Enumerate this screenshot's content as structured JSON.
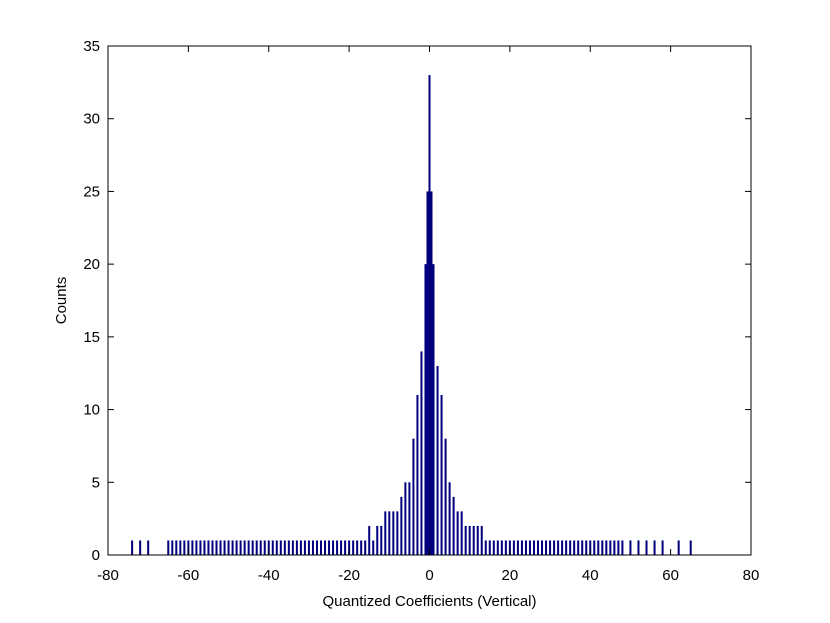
{
  "chart_data": {
    "type": "bar",
    "title": "",
    "xlabel": "Quantized Coefficients (Vertical)",
    "ylabel": "Counts",
    "xlim": [
      -80,
      80
    ],
    "ylim": [
      0,
      35
    ],
    "xticks": [
      -80,
      -60,
      -40,
      -20,
      0,
      20,
      40,
      60,
      80
    ],
    "yticks": [
      0,
      5,
      10,
      15,
      20,
      25,
      30,
      35
    ],
    "grid": false,
    "legend": "none",
    "bar_color": "#00007F",
    "bin_width": 0.5,
    "series": [
      {
        "values": [
          [
            -74,
            1
          ],
          [
            -72,
            1
          ],
          [
            -70,
            1
          ],
          [
            -65,
            1
          ],
          [
            -64,
            1
          ],
          [
            -63,
            1
          ],
          [
            -62,
            1
          ],
          [
            -61,
            1
          ],
          [
            -60,
            1
          ],
          [
            -59,
            1
          ],
          [
            -58,
            1
          ],
          [
            -57,
            1
          ],
          [
            -56,
            1
          ],
          [
            -55,
            1
          ],
          [
            -54,
            1
          ],
          [
            -53,
            1
          ],
          [
            -52,
            1
          ],
          [
            -51,
            1
          ],
          [
            -50,
            1
          ],
          [
            -49,
            1
          ],
          [
            -48,
            1
          ],
          [
            -47,
            1
          ],
          [
            -46,
            1
          ],
          [
            -45,
            1
          ],
          [
            -44,
            1
          ],
          [
            -43,
            1
          ],
          [
            -42,
            1
          ],
          [
            -41,
            1
          ],
          [
            -40,
            1
          ],
          [
            -39,
            1
          ],
          [
            -38,
            1
          ],
          [
            -37,
            1
          ],
          [
            -36,
            1
          ],
          [
            -35,
            1
          ],
          [
            -34,
            1
          ],
          [
            -33,
            1
          ],
          [
            -32,
            1
          ],
          [
            -31,
            1
          ],
          [
            -30,
            1
          ],
          [
            -29,
            1
          ],
          [
            -28,
            1
          ],
          [
            -27,
            1
          ],
          [
            -26,
            1
          ],
          [
            -25,
            1
          ],
          [
            -24,
            1
          ],
          [
            -23,
            1
          ],
          [
            -22,
            1
          ],
          [
            -21,
            1
          ],
          [
            -20,
            1
          ],
          [
            -19,
            1
          ],
          [
            -18,
            1
          ],
          [
            -17,
            1
          ],
          [
            -16,
            1
          ],
          [
            -15,
            2
          ],
          [
            -14,
            1
          ],
          [
            -13,
            2
          ],
          [
            -12,
            2
          ],
          [
            -11,
            3
          ],
          [
            -10,
            3
          ],
          [
            -9,
            3
          ],
          [
            -8,
            3
          ],
          [
            -7,
            4
          ],
          [
            -6,
            5
          ],
          [
            -5,
            5
          ],
          [
            -4,
            8
          ],
          [
            -3,
            11
          ],
          [
            -2,
            14
          ],
          [
            -1,
            20
          ],
          [
            -0.5,
            25
          ],
          [
            0,
            33
          ],
          [
            0.5,
            25
          ],
          [
            1,
            20
          ],
          [
            2,
            13
          ],
          [
            3,
            11
          ],
          [
            4,
            8
          ],
          [
            5,
            5
          ],
          [
            6,
            4
          ],
          [
            7,
            3
          ],
          [
            8,
            3
          ],
          [
            9,
            2
          ],
          [
            10,
            2
          ],
          [
            11,
            2
          ],
          [
            12,
            2
          ],
          [
            13,
            2
          ],
          [
            14,
            1
          ],
          [
            15,
            1
          ],
          [
            16,
            1
          ],
          [
            17,
            1
          ],
          [
            18,
            1
          ],
          [
            19,
            1
          ],
          [
            20,
            1
          ],
          [
            21,
            1
          ],
          [
            22,
            1
          ],
          [
            23,
            1
          ],
          [
            24,
            1
          ],
          [
            25,
            1
          ],
          [
            26,
            1
          ],
          [
            27,
            1
          ],
          [
            28,
            1
          ],
          [
            29,
            1
          ],
          [
            30,
            1
          ],
          [
            31,
            1
          ],
          [
            32,
            1
          ],
          [
            33,
            1
          ],
          [
            34,
            1
          ],
          [
            35,
            1
          ],
          [
            36,
            1
          ],
          [
            37,
            1
          ],
          [
            38,
            1
          ],
          [
            39,
            1
          ],
          [
            40,
            1
          ],
          [
            41,
            1
          ],
          [
            42,
            1
          ],
          [
            43,
            1
          ],
          [
            44,
            1
          ],
          [
            45,
            1
          ],
          [
            46,
            1
          ],
          [
            47,
            1
          ],
          [
            48,
            1
          ],
          [
            50,
            1
          ],
          [
            52,
            1
          ],
          [
            54,
            1
          ],
          [
            56,
            1
          ],
          [
            58,
            1
          ],
          [
            62,
            1
          ],
          [
            65,
            1
          ]
        ]
      }
    ]
  }
}
